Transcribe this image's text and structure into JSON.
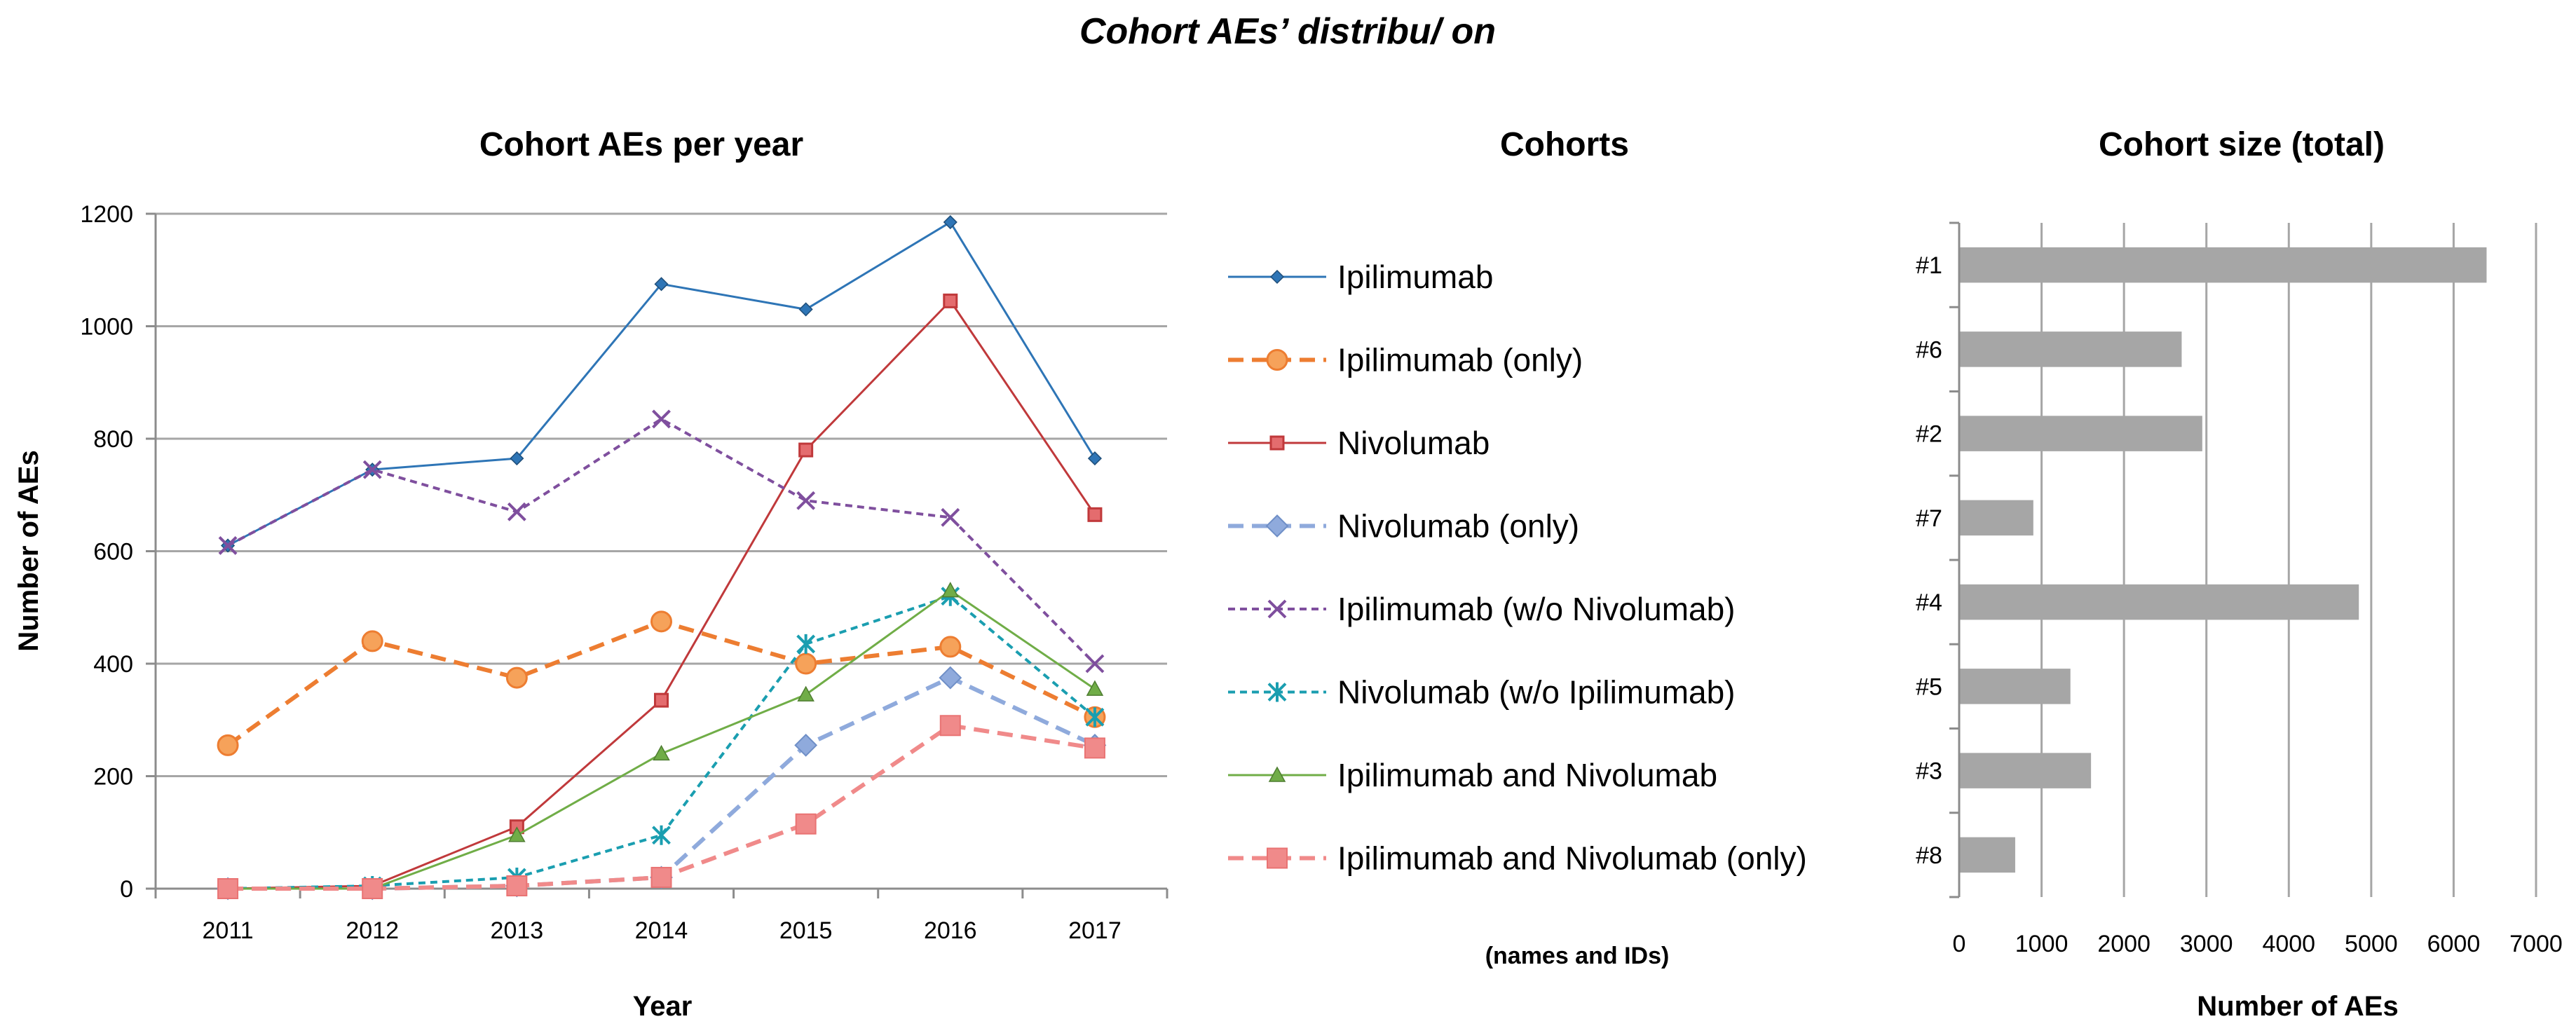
{
  "title": "Cohort AEs’ distribu/ on",
  "line_chart": {
    "title": "Cohort AEs per year",
    "xlabel": "Year",
    "ylabel": "Number of AEs"
  },
  "legend": {
    "title": "Cohorts",
    "note": "(names and IDs)"
  },
  "bar_chart": {
    "title": "Cohort size (total)",
    "xlabel": "Number of AEs"
  },
  "chart_data": [
    {
      "type": "line",
      "title": "Cohort AEs per year",
      "xlabel": "Year",
      "ylabel": "Number of AEs",
      "x": [
        "2011",
        "2012",
        "2013",
        "2014",
        "2015",
        "2016",
        "2017"
      ],
      "ylim": [
        0,
        1200
      ],
      "yticks": [
        "0",
        "200",
        "400",
        "600",
        "800",
        "1000",
        "1200"
      ],
      "grid": true,
      "series": [
        {
          "name": "Ipilimumab",
          "color": "#2e75b6",
          "dash": "",
          "marker": "diamond",
          "values": [
            610,
            745,
            765,
            1075,
            1030,
            1185,
            765
          ]
        },
        {
          "name": "Ipilimumab (only)",
          "color": "#ed7d31",
          "dash": "long",
          "marker": "circle",
          "values": [
            255,
            440,
            375,
            475,
            400,
            430,
            305
          ]
        },
        {
          "name": "Nivolumab",
          "color": "#c0393b",
          "dash": "",
          "marker": "square",
          "values": [
            0,
            5,
            110,
            335,
            780,
            1045,
            665
          ]
        },
        {
          "name": "Nivolumab (only)",
          "color": "#8faadc",
          "dash": "long",
          "marker": "diamond-big",
          "values": [
            0,
            0,
            5,
            20,
            255,
            375,
            255
          ]
        },
        {
          "name": "Ipilimumab (w/o Nivolumab)",
          "color": "#7f4f9e",
          "dash": "short",
          "marker": "x",
          "values": [
            610,
            745,
            670,
            835,
            690,
            660,
            400
          ]
        },
        {
          "name": "Nivolumab (w/o Ipilimumab)",
          "color": "#1a9eb0",
          "dash": "short",
          "marker": "asterisk",
          "values": [
            0,
            5,
            20,
            95,
            435,
            520,
            305
          ]
        },
        {
          "name": "Ipilimumab and Nivolumab",
          "color": "#70ad47",
          "dash": "",
          "marker": "triangle",
          "values": [
            0,
            0,
            95,
            240,
            345,
            530,
            355
          ]
        },
        {
          "name": "Ipilimumab and Nivolumab (only)",
          "color": "#f08a8a",
          "dash": "long",
          "marker": "square-big",
          "values": [
            0,
            0,
            5,
            20,
            115,
            290,
            250
          ]
        }
      ]
    },
    {
      "type": "bar",
      "orientation": "horizontal",
      "title": "Cohort size (total)",
      "xlabel": "Number of AEs",
      "xlim": [
        0,
        7000
      ],
      "xticks": [
        "0",
        "1000",
        "2000",
        "3000",
        "4000",
        "5000",
        "6000",
        "7000"
      ],
      "color": "#a6a6a6",
      "categories": [
        "#1",
        "#6",
        "#2",
        "#7",
        "#4",
        "#5",
        "#3",
        "#8"
      ],
      "values": [
        6400,
        2700,
        2950,
        900,
        4850,
        1350,
        1600,
        680
      ]
    }
  ]
}
